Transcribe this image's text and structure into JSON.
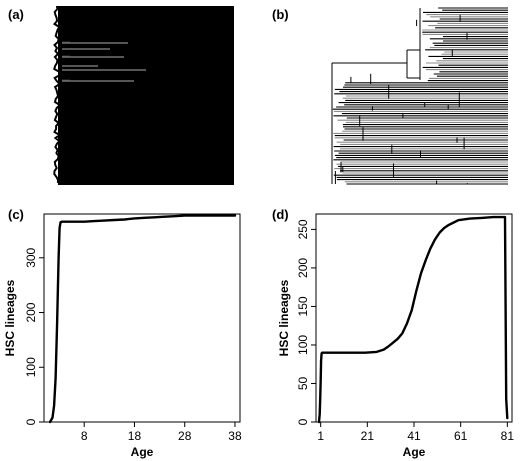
{
  "panels": {
    "a": {
      "letter": "(a)"
    },
    "b": {
      "letter": "(b)"
    },
    "c": {
      "letter": "(c)"
    },
    "d": {
      "letter": "(d)"
    }
  },
  "chart_data": [
    {
      "panel": "(a)",
      "type": "tree",
      "description_source": "phylogenetic tree of HSC lineages (dense black block with a few long grey branches)"
    },
    {
      "panel": "(b)",
      "type": "tree",
      "description_source": "phylogenetic tree of HSC lineages (black/grey branches)"
    },
    {
      "panel": "(c)",
      "type": "line",
      "xlabel": "Age",
      "ylabel": "HSC lineages",
      "xlim": [
        0,
        39
      ],
      "ylim": [
        0,
        380
      ],
      "x_ticks": [
        8,
        18,
        28,
        38
      ],
      "y_ticks": [
        0,
        100,
        200,
        300
      ],
      "grid": false,
      "series": [
        {
          "x": [
            1.2,
            1.7,
            2.0,
            2.3,
            2.6,
            2.9,
            3.1,
            3.3,
            3.6,
            4,
            8,
            10,
            12,
            14,
            16,
            18,
            20,
            22,
            24,
            26,
            28,
            30,
            32,
            34,
            36,
            38
          ],
          "y": [
            0,
            8,
            30,
            80,
            180,
            300,
            355,
            365,
            366,
            366,
            366,
            367,
            368,
            369,
            370,
            372,
            373,
            374,
            375,
            376,
            377,
            377,
            377,
            377,
            377,
            377
          ]
        }
      ]
    },
    {
      "panel": "(d)",
      "type": "line",
      "xlabel": "Age",
      "ylabel": "HSC lineages",
      "xlim": [
        -1,
        83
      ],
      "ylim": [
        0,
        270
      ],
      "x_ticks": [
        1,
        21,
        41,
        61,
        81
      ],
      "y_ticks": [
        0,
        50,
        100,
        150,
        200,
        250
      ],
      "grid": false,
      "series": [
        {
          "x": [
            0.3,
            0.6,
            0.8,
            1,
            1.2,
            1.4,
            1.6,
            1.8,
            2,
            10,
            20,
            25,
            28,
            30,
            32,
            34,
            36,
            38,
            40,
            42,
            44,
            46,
            48,
            50,
            52,
            54,
            56,
            58,
            60,
            65,
            70,
            75,
            80,
            80.5,
            81
          ],
          "y": [
            0,
            10,
            30,
            55,
            80,
            89,
            90,
            90,
            90,
            90,
            90,
            91,
            94,
            98,
            103,
            108,
            115,
            128,
            145,
            170,
            193,
            210,
            225,
            237,
            246,
            252,
            256,
            259,
            262,
            264,
            265,
            266,
            266,
            30,
            5
          ]
        }
      ]
    }
  ]
}
